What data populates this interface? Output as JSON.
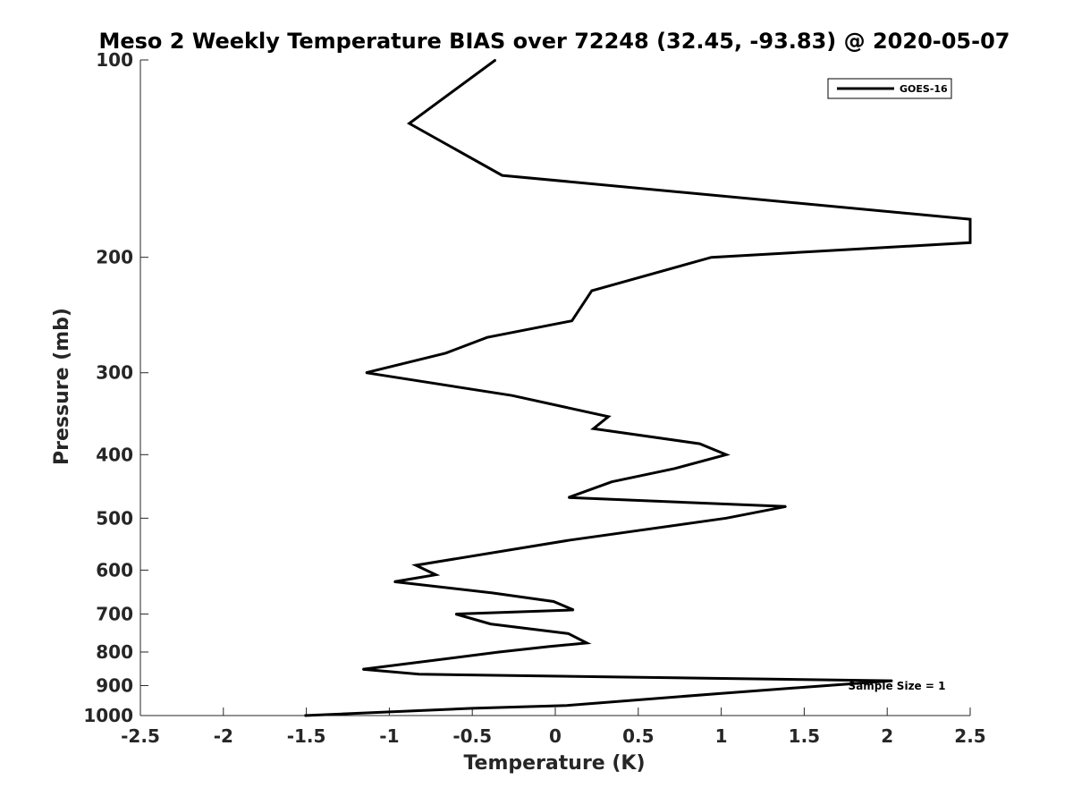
{
  "chart_data": {
    "type": "line",
    "title": "Meso 2 Weekly Temperature BIAS over 72248 (32.45, -93.83) @ 2020-05-07",
    "xlabel": "Temperature (K)",
    "ylabel": "Pressure (mb)",
    "xlim": [
      -2.5,
      2.5
    ],
    "ylim": [
      1000,
      100
    ],
    "y_scale": "log",
    "y_reversed": true,
    "grid": false,
    "legend_position": "top-right",
    "x_ticks": [
      "-2.5",
      "-2",
      "-1.5",
      "-1",
      "-0.5",
      "0",
      "0.5",
      "1",
      "1.5",
      "2",
      "2.5"
    ],
    "y_ticks": [
      "100",
      "200",
      "300",
      "400",
      "500",
      "600",
      "700",
      "800",
      "900",
      "1000"
    ],
    "annotation": "Sample Size = 1",
    "series": [
      {
        "name": "GOES-16",
        "color": "#000000",
        "points": [
          {
            "x": -0.36,
            "y": 100
          },
          {
            "x": -0.88,
            "y": 125
          },
          {
            "x": -0.32,
            "y": 150
          },
          {
            "x": 2.5,
            "y": 175
          },
          {
            "x": 2.5,
            "y": 190
          },
          {
            "x": 0.94,
            "y": 200
          },
          {
            "x": 0.22,
            "y": 225
          },
          {
            "x": 0.1,
            "y": 250
          },
          {
            "x": -0.41,
            "y": 265
          },
          {
            "x": -0.66,
            "y": 280
          },
          {
            "x": -1.14,
            "y": 300
          },
          {
            "x": -0.26,
            "y": 325
          },
          {
            "x": 0.32,
            "y": 350
          },
          {
            "x": 0.23,
            "y": 365
          },
          {
            "x": 0.87,
            "y": 385
          },
          {
            "x": 1.03,
            "y": 400
          },
          {
            "x": 0.72,
            "y": 420
          },
          {
            "x": 0.34,
            "y": 440
          },
          {
            "x": 0.08,
            "y": 465
          },
          {
            "x": 1.39,
            "y": 480
          },
          {
            "x": 1.03,
            "y": 500
          },
          {
            "x": 0.09,
            "y": 540
          },
          {
            "x": -0.84,
            "y": 590
          },
          {
            "x": -0.72,
            "y": 610
          },
          {
            "x": -0.97,
            "y": 625
          },
          {
            "x": -0.38,
            "y": 650
          },
          {
            "x": -0.01,
            "y": 670
          },
          {
            "x": 0.11,
            "y": 690
          },
          {
            "x": -0.6,
            "y": 700
          },
          {
            "x": -0.39,
            "y": 725
          },
          {
            "x": 0.08,
            "y": 750
          },
          {
            "x": 0.19,
            "y": 775
          },
          {
            "x": -0.04,
            "y": 785
          },
          {
            "x": -0.34,
            "y": 800
          },
          {
            "x": -1.16,
            "y": 850
          },
          {
            "x": -0.82,
            "y": 865
          },
          {
            "x": 2.03,
            "y": 885
          },
          {
            "x": 1.0,
            "y": 925
          },
          {
            "x": 0.07,
            "y": 965
          },
          {
            "x": -0.5,
            "y": 975
          },
          {
            "x": -1.51,
            "y": 1000
          }
        ]
      }
    ]
  }
}
